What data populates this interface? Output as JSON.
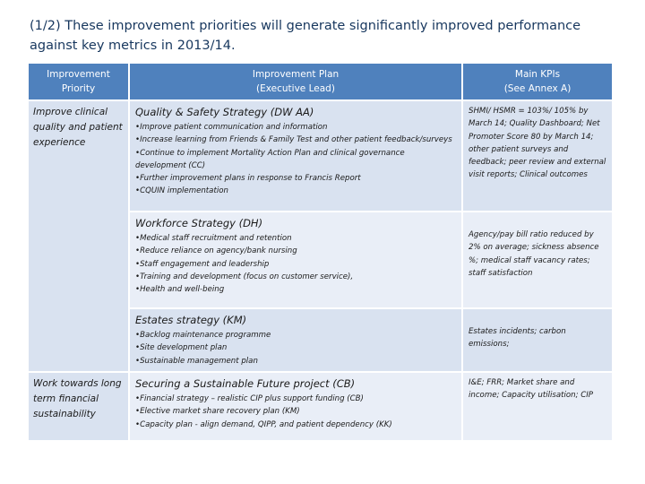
{
  "title": "(1/2) These improvement priorities will generate significantly improved performance against key metrics in 2013/14.",
  "headers": {
    "priority": [
      "Improvement",
      "Priority"
    ],
    "plan": [
      "Improvement Plan",
      "(Executive Lead)"
    ],
    "kpis": [
      "Main KPIs",
      "(See Annex A)"
    ]
  },
  "priorities": [
    "Improve clinical quality and patient experience",
    "Work towards long term financial sustainability"
  ],
  "plans": [
    {
      "title": "Quality & Safety Strategy (DW AA)",
      "bullets": [
        "•Improve patient communication and information",
        "•Increase learning from Friends & Family Test and other patient feedback/surveys",
        "•Continue to implement Mortality Action Plan and clinical governance development (CC)",
        "•Further improvement plans in response to Francis Report",
        "•CQUIN implementation"
      ],
      "kpis": "SHMI/ HSMR = 103%/ 105% by March 14; Quality Dashboard; Net Promoter Score 80 by March 14; other patient surveys and feedback; peer review and external visit reports; Clinical outcomes"
    },
    {
      "title": "Workforce Strategy (DH)",
      "bullets": [
        "•Medical staff recruitment and retention",
        "•Reduce reliance on agency/bank nursing",
        "•Staff engagement and leadership",
        "•Training and development (focus on customer service),",
        "•Health and well-being"
      ],
      "kpis": "Agency/pay bill ratio reduced by 2% on average; sickness absence %; medical staff vacancy rates; staff satisfaction"
    },
    {
      "title": "Estates strategy (KM)",
      "bullets": [
        "•Backlog maintenance programme",
        "•Site development plan",
        "•Sustainable management plan"
      ],
      "kpis": "Estates incidents; carbon emissions;"
    },
    {
      "title": "Securing a Sustainable Future project (CB)",
      "bullets": [
        "•Financial strategy – realistic CIP plus support funding (CB)",
        "•Elective market share recovery plan (KM)",
        "•Capacity plan - align demand, QIPP, and patient dependency (KK)"
      ],
      "kpis": "I&E; FRR; Market share and income; Capacity utilisation; CIP"
    }
  ],
  "colors": {
    "header": "#4f81bd",
    "row_dark": "#d9e2f0",
    "row_light": "#e9eef7",
    "title": "#17375e"
  }
}
